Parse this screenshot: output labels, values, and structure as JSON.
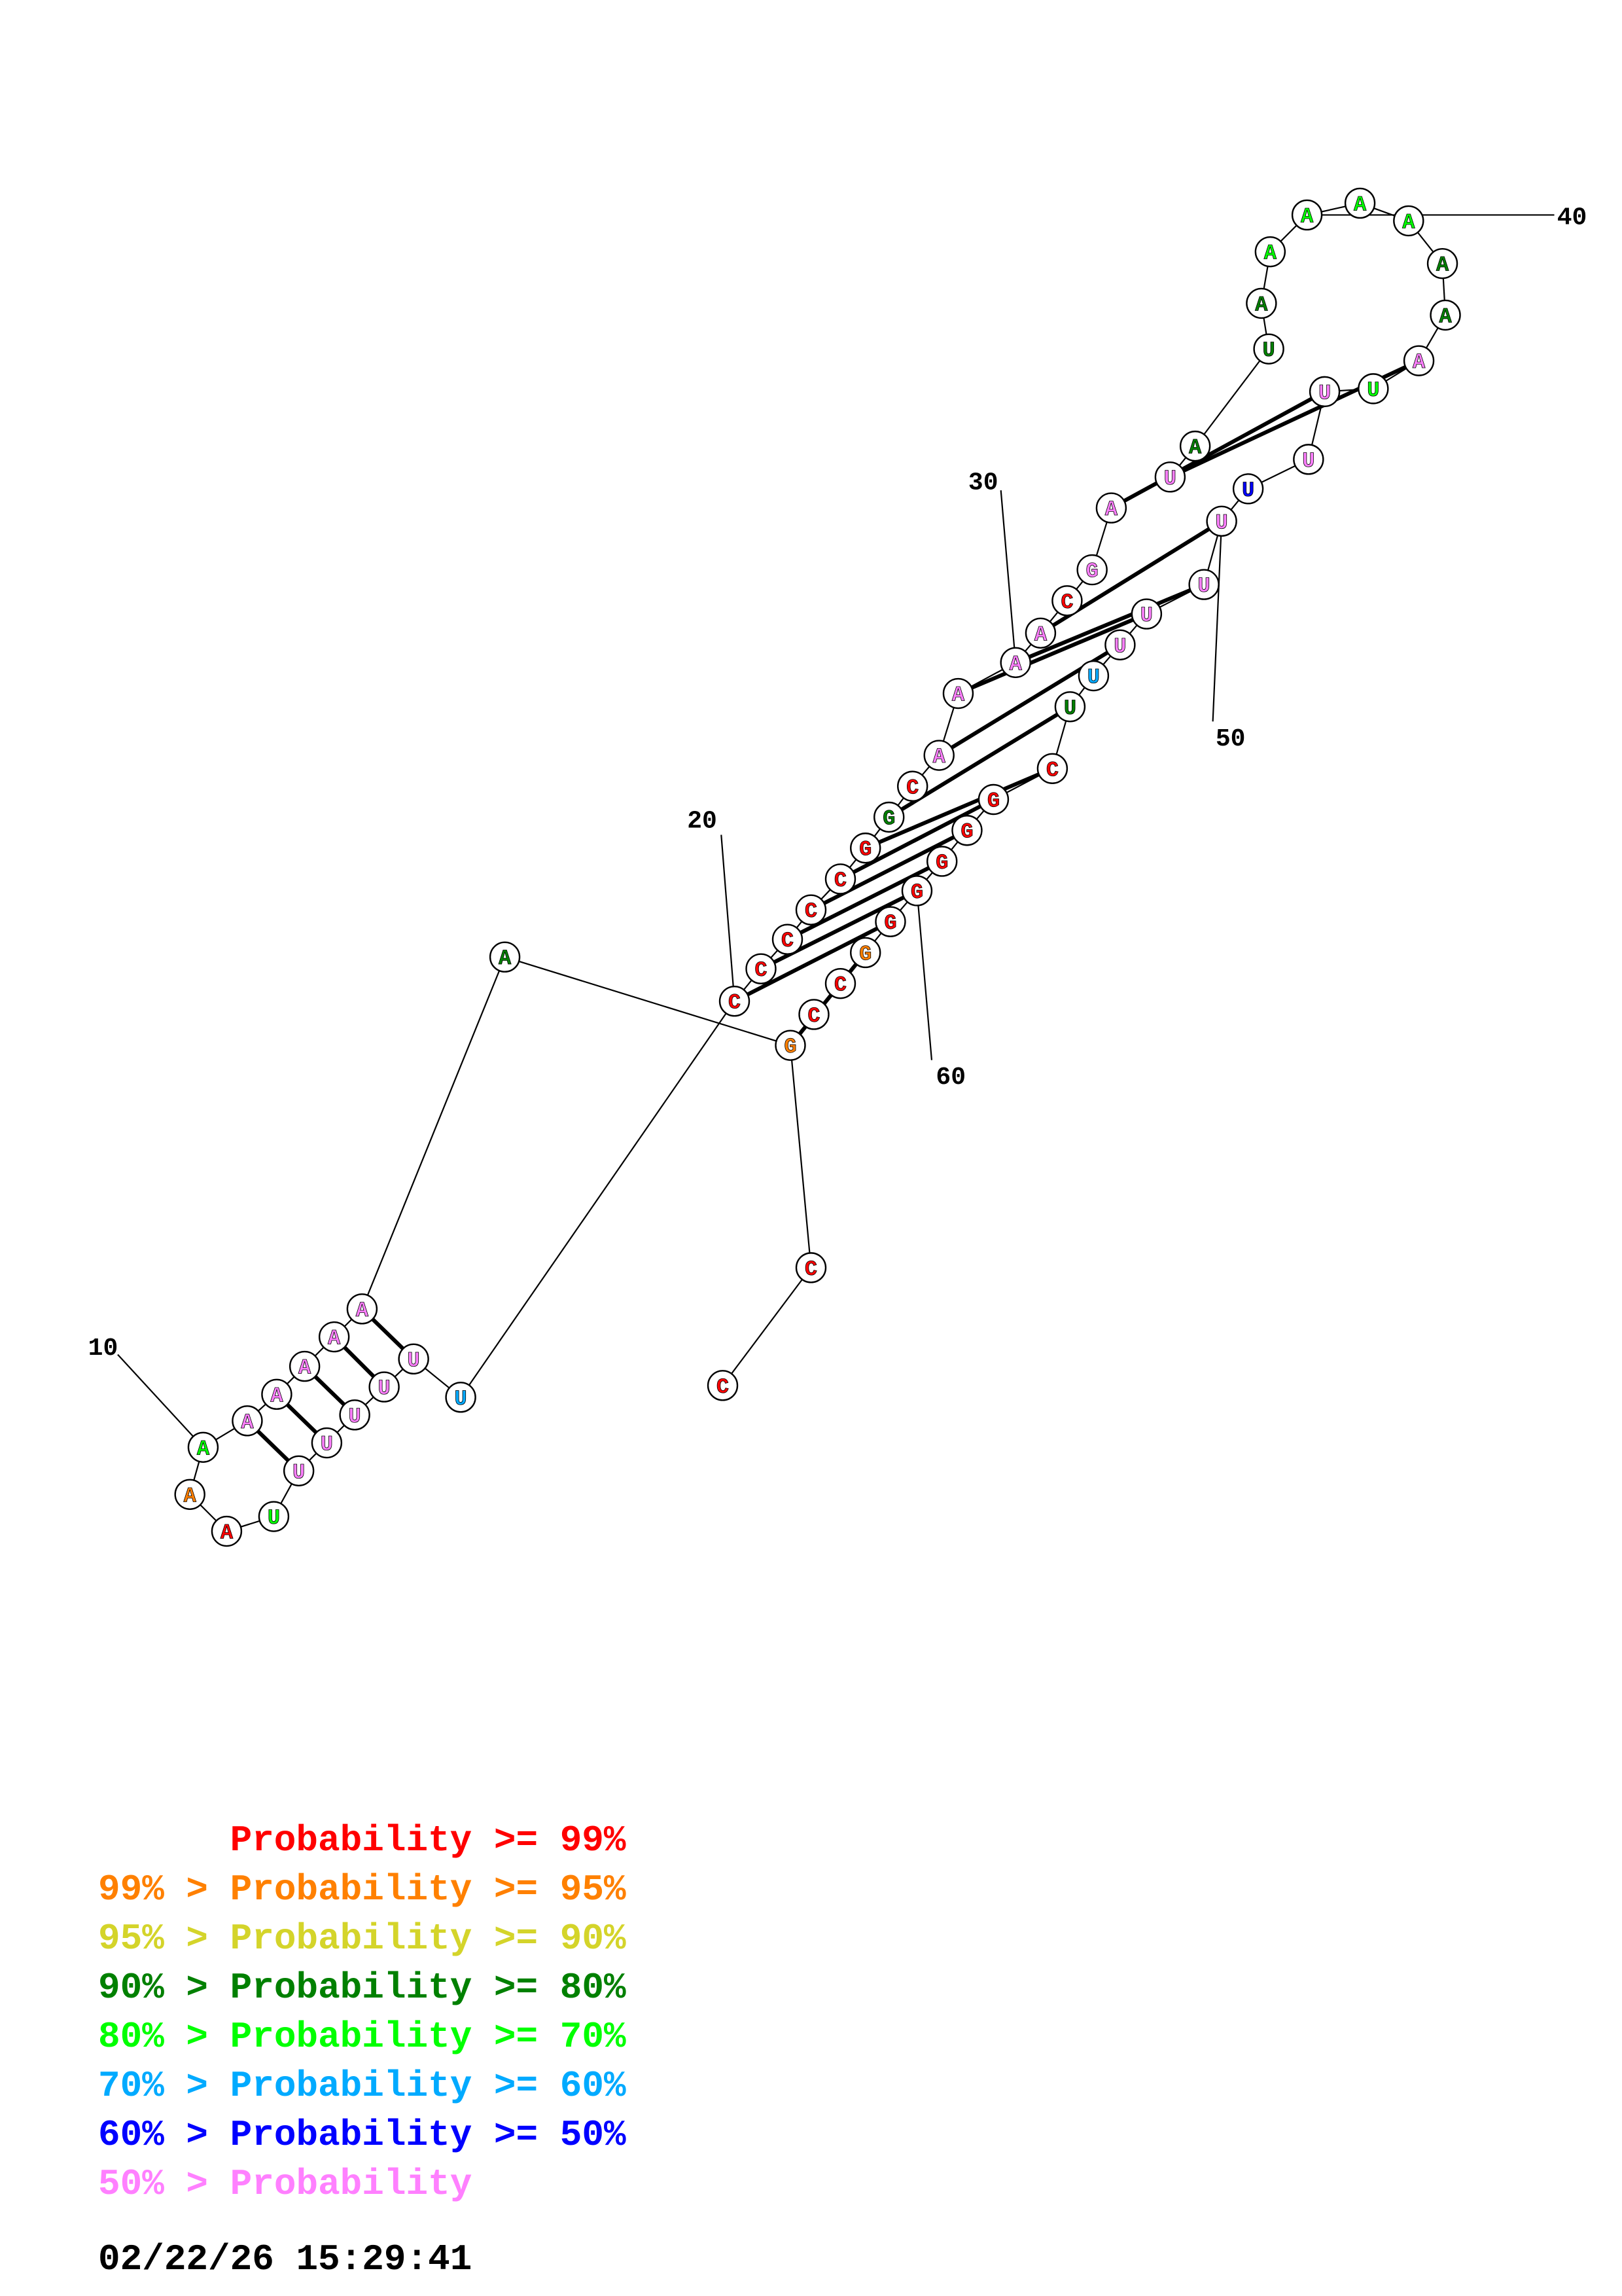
{
  "colors": {
    "red": "#ff0000",
    "orange": "#ff8000",
    "yellow": "#d4d42a",
    "darkgreen": "#008000",
    "green": "#00ff00",
    "cyan": "#00aaff",
    "blue": "#0000ff",
    "pink": "#ff80ff"
  },
  "sequence": [
    {
      "n": 1,
      "base": "C",
      "prob": "red"
    },
    {
      "n": 2,
      "base": "C",
      "prob": "red"
    },
    {
      "n": 3,
      "base": "G",
      "prob": "orange"
    },
    {
      "n": 4,
      "base": "A",
      "prob": "darkgreen"
    },
    {
      "n": 5,
      "base": "A",
      "prob": "pink"
    },
    {
      "n": 6,
      "base": "A",
      "prob": "pink"
    },
    {
      "n": 7,
      "base": "A",
      "prob": "pink"
    },
    {
      "n": 8,
      "base": "A",
      "prob": "pink"
    },
    {
      "n": 9,
      "base": "A",
      "prob": "pink"
    },
    {
      "n": 10,
      "base": "A",
      "prob": "green"
    },
    {
      "n": 11,
      "base": "A",
      "prob": "orange"
    },
    {
      "n": 12,
      "base": "A",
      "prob": "red"
    },
    {
      "n": 13,
      "base": "U",
      "prob": "green"
    },
    {
      "n": 14,
      "base": "U",
      "prob": "pink"
    },
    {
      "n": 15,
      "base": "U",
      "prob": "pink"
    },
    {
      "n": 16,
      "base": "U",
      "prob": "pink"
    },
    {
      "n": 17,
      "base": "U",
      "prob": "pink"
    },
    {
      "n": 18,
      "base": "U",
      "prob": "pink"
    },
    {
      "n": 19,
      "base": "U",
      "prob": "cyan"
    },
    {
      "n": 20,
      "base": "C",
      "prob": "red"
    },
    {
      "n": 21,
      "base": "C",
      "prob": "red"
    },
    {
      "n": 22,
      "base": "C",
      "prob": "red"
    },
    {
      "n": 23,
      "base": "C",
      "prob": "red"
    },
    {
      "n": 24,
      "base": "C",
      "prob": "red"
    },
    {
      "n": 25,
      "base": "G",
      "prob": "red"
    },
    {
      "n": 26,
      "base": "G",
      "prob": "darkgreen"
    },
    {
      "n": 27,
      "base": "C",
      "prob": "red"
    },
    {
      "n": 28,
      "base": "A",
      "prob": "pink"
    },
    {
      "n": 29,
      "base": "A",
      "prob": "pink"
    },
    {
      "n": 30,
      "base": "A",
      "prob": "pink"
    },
    {
      "n": 31,
      "base": "A",
      "prob": "pink"
    },
    {
      "n": 32,
      "base": "C",
      "prob": "red"
    },
    {
      "n": 33,
      "base": "G",
      "prob": "pink"
    },
    {
      "n": 34,
      "base": "A",
      "prob": "pink"
    },
    {
      "n": 35,
      "base": "U",
      "prob": "pink"
    },
    {
      "n": 36,
      "base": "A",
      "prob": "darkgreen"
    },
    {
      "n": 37,
      "base": "U",
      "prob": "darkgreen"
    },
    {
      "n": 38,
      "base": "A",
      "prob": "darkgreen"
    },
    {
      "n": 39,
      "base": "A",
      "prob": "green"
    },
    {
      "n": 40,
      "base": "A",
      "prob": "green"
    },
    {
      "n": 41,
      "base": "A",
      "prob": "green"
    },
    {
      "n": 42,
      "base": "A",
      "prob": "green"
    },
    {
      "n": 43,
      "base": "A",
      "prob": "darkgreen"
    },
    {
      "n": 44,
      "base": "A",
      "prob": "darkgreen"
    },
    {
      "n": 45,
      "base": "A",
      "prob": "pink"
    },
    {
      "n": 46,
      "base": "U",
      "prob": "green"
    },
    {
      "n": 47,
      "base": "U",
      "prob": "pink"
    },
    {
      "n": 48,
      "base": "U",
      "prob": "pink"
    },
    {
      "n": 49,
      "base": "U",
      "prob": "blue"
    },
    {
      "n": 50,
      "base": "U",
      "prob": "pink"
    },
    {
      "n": 51,
      "base": "U",
      "prob": "pink"
    },
    {
      "n": 52,
      "base": "U",
      "prob": "pink"
    },
    {
      "n": 53,
      "base": "U",
      "prob": "pink"
    },
    {
      "n": 54,
      "base": "U",
      "prob": "cyan"
    },
    {
      "n": 55,
      "base": "U",
      "prob": "darkgreen"
    },
    {
      "n": 56,
      "base": "C",
      "prob": "red"
    },
    {
      "n": 57,
      "base": "G",
      "prob": "red"
    },
    {
      "n": 58,
      "base": "G",
      "prob": "red"
    },
    {
      "n": 59,
      "base": "G",
      "prob": "red"
    },
    {
      "n": 60,
      "base": "G",
      "prob": "red"
    },
    {
      "n": 61,
      "base": "G",
      "prob": "red"
    },
    {
      "n": 62,
      "base": "G",
      "prob": "orange"
    },
    {
      "n": 63,
      "base": "C",
      "prob": "red"
    },
    {
      "n": 64,
      "base": "C",
      "prob": "red"
    }
  ],
  "pairs": [
    [
      5,
      18
    ],
    [
      6,
      17
    ],
    [
      7,
      16
    ],
    [
      8,
      15
    ],
    [
      9,
      14
    ],
    [
      3,
      62
    ],
    [
      20,
      61
    ],
    [
      21,
      60
    ],
    [
      22,
      59
    ],
    [
      23,
      58
    ],
    [
      24,
      57
    ],
    [
      25,
      56
    ],
    [
      26,
      55
    ],
    [
      28,
      53
    ],
    [
      29,
      52
    ],
    [
      30,
      51
    ],
    [
      31,
      50
    ],
    [
      34,
      47
    ],
    [
      35,
      45
    ]
  ],
  "position_labels": [
    {
      "n": 10,
      "text": "10"
    },
    {
      "n": 20,
      "text": "20"
    },
    {
      "n": 30,
      "text": "30"
    },
    {
      "n": 40,
      "text": "40"
    },
    {
      "n": 50,
      "text": "50"
    },
    {
      "n": 60,
      "text": "60"
    }
  ],
  "legend": [
    {
      "prefix": "",
      "label": "Probability",
      "suffix": " >= 99%",
      "color": "red"
    },
    {
      "prefix": "99% > ",
      "label": "Probability",
      "suffix": " >= 95%",
      "color": "orange"
    },
    {
      "prefix": "95% > ",
      "label": "Probability",
      "suffix": " >= 90%",
      "color": "yellow"
    },
    {
      "prefix": "90% > ",
      "label": "Probability",
      "suffix": " >= 80%",
      "color": "darkgreen"
    },
    {
      "prefix": "80% > ",
      "label": "Probability",
      "suffix": " >= 70%",
      "color": "green"
    },
    {
      "prefix": "70% > ",
      "label": "Probability",
      "suffix": " >= 60%",
      "color": "cyan"
    },
    {
      "prefix": "60% > ",
      "label": "Probability",
      "suffix": " >= 50%",
      "color": "blue"
    },
    {
      "prefix": "50% > ",
      "label": "Probability",
      "suffix": "",
      "color": "pink"
    }
  ],
  "timestamp": "02/22/26 15:29:41"
}
